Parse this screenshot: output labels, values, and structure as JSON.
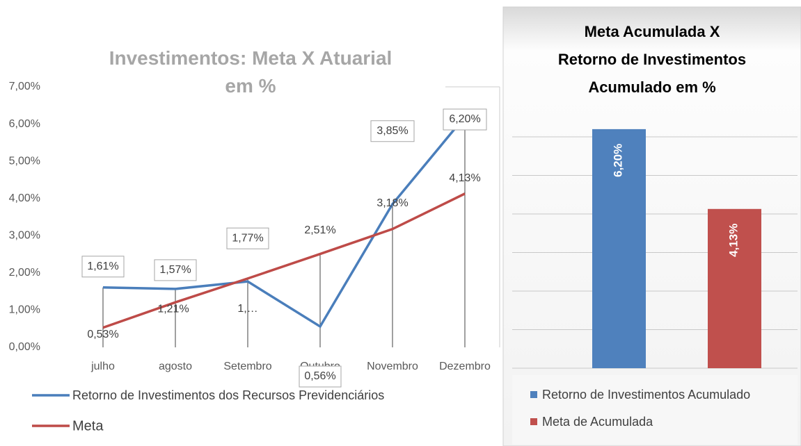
{
  "charts": [
    {
      "type": "line",
      "title": "Investimentos: Meta X Atuarial em %",
      "categories": [
        "julho",
        "agosto",
        "Setembro",
        "Outubro",
        "Novembro",
        "Dezembro"
      ],
      "series": [
        {
          "name": "Retorno de Investimentos dos Recursos Previdenciários",
          "color": "#4a7ebb",
          "values": [
            1.61,
            1.57,
            1.77,
            0.56,
            3.85,
            6.2
          ],
          "value_labels": [
            "1,61%",
            "1,57%",
            "1,77%",
            "0,56%",
            "3,85%",
            "6,20%"
          ]
        },
        {
          "name": "Meta",
          "color": "#be4b48",
          "values": [
            0.53,
            1.21,
            1.85,
            2.51,
            3.18,
            4.13
          ],
          "value_labels": [
            "0,53%",
            "1,21%",
            "1,…",
            "2,51%",
            "3,18%",
            "4,13%"
          ]
        }
      ],
      "ylim": [
        0,
        7
      ],
      "yticks": [
        {
          "value": 0,
          "label": "0,00%"
        },
        {
          "value": 1,
          "label": "1,00%"
        },
        {
          "value": 2,
          "label": "2,00%"
        },
        {
          "value": 3,
          "label": "3,00%"
        },
        {
          "value": 4,
          "label": "4,00%"
        },
        {
          "value": 5,
          "label": "5,00%"
        },
        {
          "value": 6,
          "label": "6,00%"
        },
        {
          "value": 7,
          "label": "7,00%"
        }
      ]
    },
    {
      "type": "bar",
      "title": "Meta Acumulada X Retorno de Investimentos Acumulado em %",
      "series": [
        {
          "name": "Retorno de Investimentos Acumulado",
          "color": "#4f81bd",
          "values": [
            6.2
          ],
          "value_labels": [
            "6,20%"
          ]
        },
        {
          "name": "Meta de Acumulada",
          "color": "#c0504d",
          "values": [
            4.13
          ],
          "value_labels": [
            "4,13%"
          ]
        }
      ],
      "ylim": [
        0,
        7
      ],
      "yticks": [
        0,
        1,
        2,
        3,
        4,
        5,
        6
      ],
      "grid": true
    }
  ]
}
